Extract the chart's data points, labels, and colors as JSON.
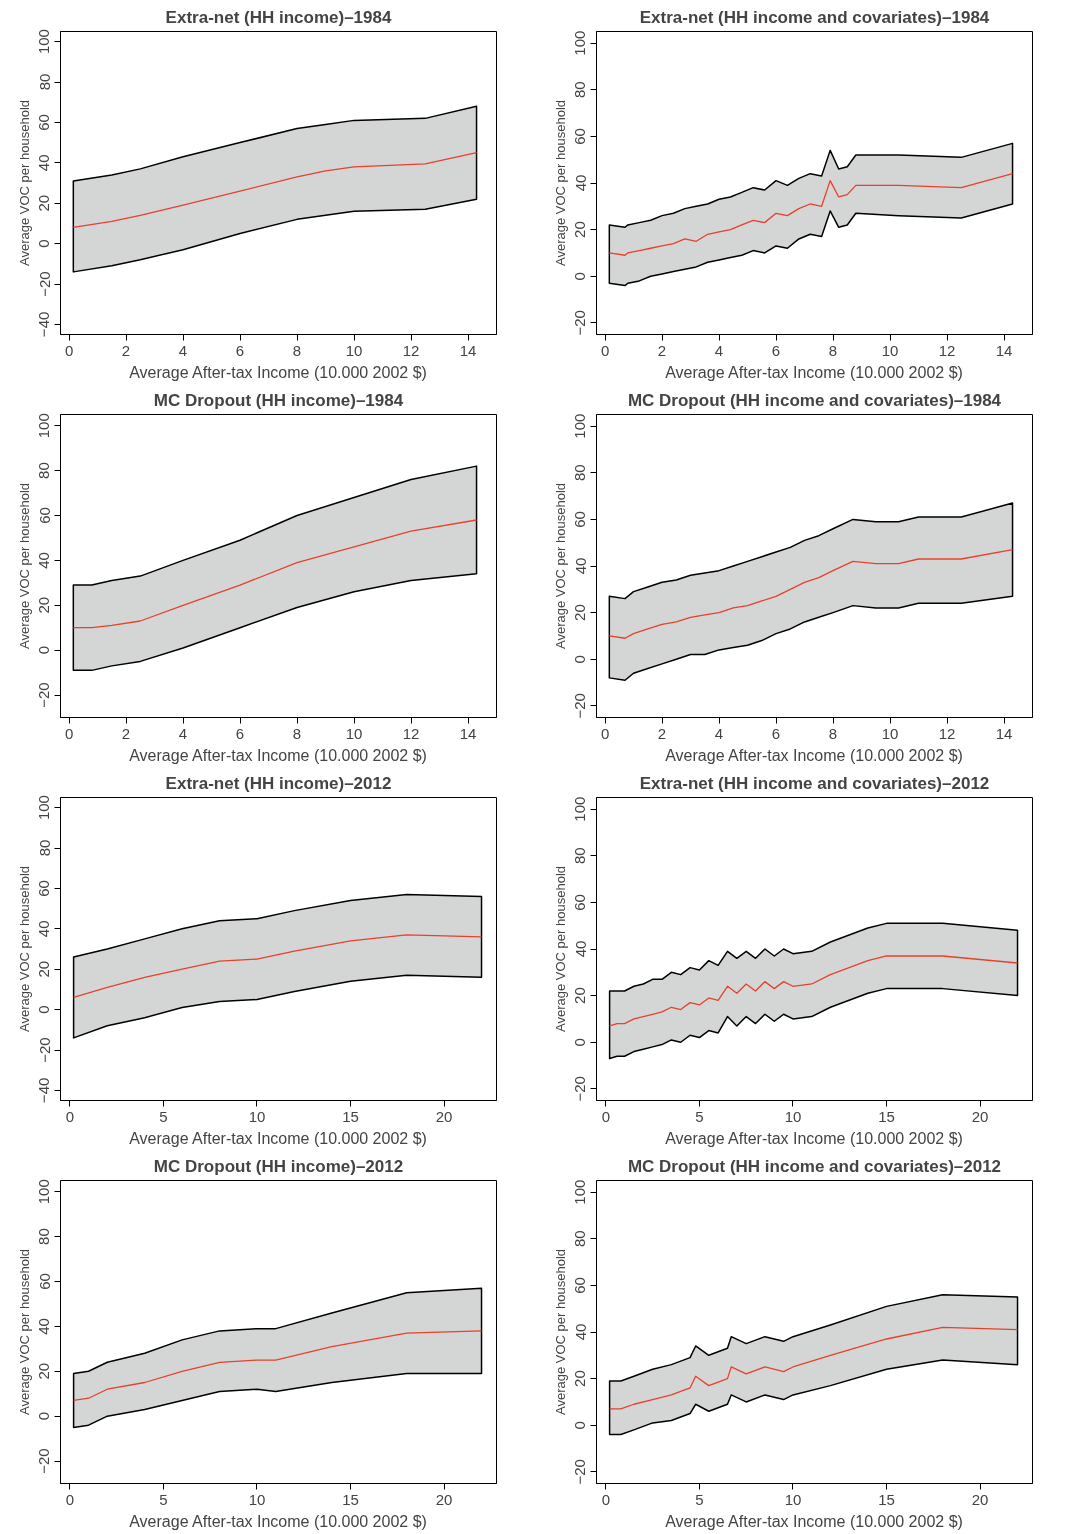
{
  "chart_data": [
    {
      "type": "line",
      "title": "Extra-net (HH income)–1984",
      "xlabel": "Average After-tax Income (10.000 2002 $)",
      "ylabel": "Average VOC per household",
      "xlim": [
        -0.3,
        15.0
      ],
      "ylim": [
        -45,
        105
      ],
      "xticks": [
        0,
        2,
        4,
        6,
        8,
        10,
        12,
        14
      ],
      "yticks": [
        -40,
        -20,
        0,
        20,
        40,
        60,
        80,
        100
      ],
      "series": [
        {
          "color": "#e8412c",
          "x": [
            0.15,
            1.5,
            2.5,
            4,
            6,
            8,
            9,
            10,
            12.5,
            14.3
          ],
          "values": [
            8,
            11,
            14,
            19,
            26,
            33,
            36,
            38,
            39.5,
            45
          ],
          "upper": [
            31,
            34,
            37,
            43,
            50,
            57,
            59,
            61,
            62,
            68
          ],
          "lower": [
            -14,
            -11,
            -8,
            -3,
            5,
            12,
            14,
            16,
            17,
            22
          ]
        }
      ]
    },
    {
      "type": "line",
      "title": "Extra-net (HH income and covariates)–1984",
      "xlabel": "Average After-tax Income (10.000 2002 $)",
      "ylabel": "Average VOC per household",
      "xlim": [
        -0.3,
        15.0
      ],
      "ylim": [
        -25,
        105
      ],
      "xticks": [
        0,
        2,
        4,
        6,
        8,
        10,
        12,
        14
      ],
      "yticks": [
        -20,
        0,
        20,
        40,
        60,
        80,
        100
      ],
      "series": [
        {
          "color": "#e8412c",
          "x": [
            0.15,
            0.7,
            0.8,
            1.2,
            1.6,
            2,
            2.4,
            2.8,
            3.2,
            3.6,
            4,
            4.4,
            4.8,
            5.2,
            5.6,
            6,
            6.4,
            6.8,
            7.2,
            7.6,
            7.9,
            8.2,
            8.5,
            8.8,
            10.3,
            12.5,
            14.3
          ],
          "values": [
            10,
            9,
            10,
            11,
            12,
            13,
            14,
            16,
            15,
            18,
            19,
            20,
            22,
            24,
            23,
            27,
            26,
            29,
            31,
            30,
            41,
            34,
            35,
            39,
            39,
            38,
            44
          ],
          "upper": [
            22,
            21,
            22,
            23,
            24,
            26,
            27,
            29,
            30,
            31,
            33,
            34,
            36,
            38,
            37,
            41,
            39,
            42,
            44,
            43,
            54,
            46,
            47,
            52,
            52,
            51,
            57
          ],
          "lower": [
            -3,
            -4,
            -3,
            -2,
            0,
            1,
            2,
            3,
            4,
            6,
            7,
            8,
            9,
            11,
            10,
            13,
            12,
            16,
            18,
            17,
            28,
            21,
            22,
            27,
            26,
            25,
            31
          ]
        }
      ]
    },
    {
      "type": "line",
      "title": "MC Dropout (HH income)–1984",
      "xlabel": "Average After-tax Income (10.000 2002 $)",
      "ylabel": "Average VOC per household",
      "xlim": [
        -0.3,
        15.0
      ],
      "ylim": [
        -30,
        105
      ],
      "xticks": [
        0,
        2,
        4,
        6,
        8,
        10,
        12,
        14
      ],
      "yticks": [
        -20,
        0,
        20,
        40,
        60,
        80,
        100
      ],
      "series": [
        {
          "color": "#e8412c",
          "x": [
            0.15,
            0.8,
            1.5,
            2.5,
            4,
            6,
            8,
            10,
            12,
            14.3
          ],
          "values": [
            10,
            10,
            11,
            13,
            20,
            29,
            39,
            46,
            53,
            58
          ],
          "upper": [
            29,
            29,
            31,
            33,
            40,
            49,
            60,
            68,
            76,
            82
          ],
          "lower": [
            -9,
            -9,
            -7,
            -5,
            1,
            10,
            19,
            26,
            31,
            34
          ]
        }
      ]
    },
    {
      "type": "line",
      "title": "MC Dropout (HH income and covariates)–1984",
      "xlabel": "Average After-tax Income (10.000 2002 $)",
      "ylabel": "Average VOC per household",
      "xlim": [
        -0.3,
        15.0
      ],
      "ylim": [
        -25,
        105
      ],
      "xticks": [
        0,
        2,
        4,
        6,
        8,
        10,
        12,
        14
      ],
      "yticks": [
        -20,
        0,
        20,
        40,
        60,
        80,
        100
      ],
      "series": [
        {
          "color": "#e8412c",
          "x": [
            0.15,
            0.7,
            1,
            1.5,
            2,
            2.5,
            3,
            3.5,
            4,
            4.5,
            5,
            5.5,
            6,
            6.5,
            7,
            7.5,
            8,
            8.7,
            9.5,
            10.3,
            11,
            12.5,
            14.3
          ],
          "values": [
            10,
            9,
            11,
            13,
            15,
            16,
            18,
            19,
            20,
            22,
            23,
            25,
            27,
            30,
            33,
            35,
            38,
            42,
            41,
            41,
            43,
            43,
            47
          ],
          "upper": [
            27,
            26,
            29,
            31,
            33,
            34,
            36,
            37,
            38,
            40,
            42,
            44,
            46,
            48,
            51,
            53,
            56,
            60,
            59,
            59,
            61,
            61,
            67
          ],
          "lower": [
            -8,
            -9,
            -6,
            -4,
            -2,
            0,
            2,
            2,
            4,
            5,
            6,
            8,
            11,
            13,
            16,
            18,
            20,
            23,
            22,
            22,
            24,
            24,
            27
          ]
        }
      ]
    },
    {
      "type": "line",
      "title": "Extra-net (HH income)–2012",
      "xlabel": "Average After-tax Income (10.000 2002 $)",
      "ylabel": "Average VOC per household",
      "xlim": [
        -0.5,
        22.8
      ],
      "ylim": [
        -45,
        105
      ],
      "xticks": [
        0,
        5,
        10,
        15,
        20
      ],
      "yticks": [
        -40,
        -20,
        0,
        20,
        40,
        60,
        80,
        100
      ],
      "series": [
        {
          "color": "#e8412c",
          "x": [
            0.2,
            2,
            4,
            6,
            8,
            10,
            12,
            15,
            18,
            22
          ],
          "values": [
            6,
            11,
            16,
            20,
            24,
            25,
            29,
            34,
            37,
            36
          ],
          "upper": [
            26,
            30,
            35,
            40,
            44,
            45,
            49,
            54,
            57,
            56
          ],
          "lower": [
            -14,
            -8,
            -4,
            1,
            4,
            5,
            9,
            14,
            17,
            16
          ]
        }
      ]
    },
    {
      "type": "line",
      "title": "Extra-net (HH income and covariates)–2012",
      "xlabel": "Average After-tax Income (10.000 2002 $)",
      "ylabel": "Average VOC per household",
      "xlim": [
        -0.5,
        22.8
      ],
      "ylim": [
        -25,
        105
      ],
      "xticks": [
        0,
        5,
        10,
        15,
        20
      ],
      "yticks": [
        -20,
        0,
        20,
        40,
        60,
        80,
        100
      ],
      "series": [
        {
          "color": "#e8412c",
          "x": [
            0.2,
            0.6,
            1,
            1.5,
            2,
            2.5,
            3,
            3.5,
            4,
            4.5,
            5,
            5.5,
            6,
            6.5,
            7,
            7.5,
            8,
            8.5,
            9,
            9.5,
            10,
            11,
            12,
            14,
            15,
            18,
            22
          ],
          "values": [
            7,
            8,
            8,
            10,
            11,
            12,
            13,
            15,
            14,
            17,
            16,
            19,
            18,
            24,
            21,
            25,
            22,
            26,
            23,
            26,
            24,
            25,
            29,
            35,
            37,
            37,
            34
          ],
          "upper": [
            22,
            22,
            22,
            24,
            25,
            27,
            27,
            30,
            29,
            32,
            31,
            35,
            33,
            39,
            36,
            39,
            36,
            40,
            37,
            40,
            38,
            39,
            43,
            49,
            51,
            51,
            48
          ],
          "lower": [
            -7,
            -6,
            -6,
            -4,
            -3,
            -2,
            -1,
            1,
            0,
            3,
            2,
            5,
            4,
            11,
            7,
            11,
            8,
            12,
            9,
            12,
            10,
            11,
            15,
            21,
            23,
            23,
            20
          ]
        }
      ]
    },
    {
      "type": "line",
      "title": "MC Dropout (HH income)–2012",
      "xlabel": "Average After-tax Income (10.000 2002 $)",
      "ylabel": "Average VOC per household",
      "xlim": [
        -0.5,
        22.8
      ],
      "ylim": [
        -30,
        105
      ],
      "xticks": [
        0,
        5,
        10,
        15,
        20
      ],
      "yticks": [
        -20,
        0,
        20,
        40,
        60,
        80,
        100
      ],
      "series": [
        {
          "color": "#e8412c",
          "x": [
            0.2,
            1,
            2,
            4,
            6,
            8,
            10,
            11,
            14,
            18,
            22
          ],
          "values": [
            7,
            8,
            12,
            15,
            20,
            24,
            25,
            25,
            31,
            37,
            38
          ],
          "upper": [
            19,
            20,
            24,
            28,
            34,
            38,
            39,
            39,
            46,
            55,
            57
          ],
          "lower": [
            -5,
            -4,
            0,
            3,
            7,
            11,
            12,
            11,
            15,
            19,
            19
          ]
        }
      ]
    },
    {
      "type": "line",
      "title": "MC Dropout (HH income and covariates)–2012",
      "xlabel": "Average After-tax Income (10.000 2002 $)",
      "ylabel": "Average VOC per household",
      "xlim": [
        -0.5,
        22.8
      ],
      "ylim": [
        -25,
        105
      ],
      "xticks": [
        0,
        5,
        10,
        15,
        20
      ],
      "yticks": [
        -20,
        0,
        20,
        40,
        60,
        80,
        100
      ],
      "series": [
        {
          "color": "#e8412c",
          "x": [
            0.2,
            0.8,
            1.5,
            2.5,
            3.5,
            4.5,
            4.8,
            5.5,
            6.5,
            6.7,
            7.5,
            8.5,
            9.5,
            10,
            12,
            15,
            18,
            22
          ],
          "values": [
            7,
            7,
            9,
            11,
            13,
            16,
            21,
            17,
            20,
            25,
            22,
            25,
            23,
            25,
            30,
            37,
            42,
            41
          ],
          "upper": [
            19,
            19,
            21,
            24,
            26,
            29,
            34,
            30,
            33,
            38,
            35,
            38,
            36,
            38,
            43,
            51,
            56,
            55
          ],
          "lower": [
            -4,
            -4,
            -2,
            1,
            2,
            5,
            9,
            6,
            9,
            13,
            10,
            13,
            11,
            13,
            17,
            24,
            28,
            26
          ]
        }
      ]
    }
  ]
}
